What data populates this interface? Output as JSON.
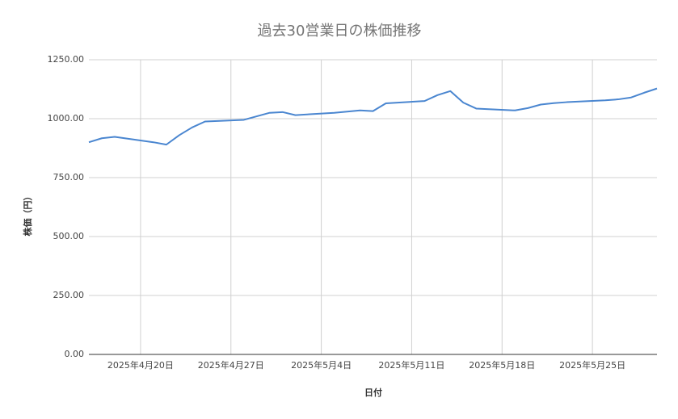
{
  "chart_data": {
    "type": "line",
    "title": "過去30営業日の株価推移",
    "x_label": "日付",
    "y_label": "株価（円）",
    "x": [
      "2025-04-16",
      "2025-04-17",
      "2025-04-18",
      "2025-04-21",
      "2025-04-22",
      "2025-04-23",
      "2025-04-24",
      "2025-04-25",
      "2025-04-28",
      "2025-04-29",
      "2025-04-30",
      "2025-05-01",
      "2025-05-02",
      "2025-05-05",
      "2025-05-06",
      "2025-05-07",
      "2025-05-08",
      "2025-05-09",
      "2025-05-12",
      "2025-05-13",
      "2025-05-14",
      "2025-05-15",
      "2025-05-16",
      "2025-05-19",
      "2025-05-20",
      "2025-05-21",
      "2025-05-22",
      "2025-05-23",
      "2025-05-26",
      "2025-05-27",
      "2025-05-28",
      "2025-05-29",
      "2025-05-30"
    ],
    "series": [
      {
        "color": "#4a86d0",
        "values": [
          900,
          917,
          923,
          900,
          890,
          930,
          963,
          988,
          995,
          1010,
          1025,
          1028,
          1015,
          1025,
          1030,
          1035,
          1032,
          1065,
          1075,
          1100,
          1117,
          1068,
          1043,
          1035,
          1045,
          1060,
          1066,
          1070,
          1078,
          1082,
          1090,
          1110,
          1128
        ]
      }
    ],
    "xlim": [
      "2025-04-16",
      "2025-05-30"
    ],
    "xticks": [
      {
        "value": "2025-04-20",
        "label": "2025年4月20日"
      },
      {
        "value": "2025-04-27",
        "label": "2025年4月27日"
      },
      {
        "value": "2025-05-04",
        "label": "2025年5月4日"
      },
      {
        "value": "2025-05-11",
        "label": "2025年5月11日"
      },
      {
        "value": "2025-05-18",
        "label": "2025年5月18日"
      },
      {
        "value": "2025-05-25",
        "label": "2025年5月25日"
      }
    ],
    "ylim": [
      0,
      1250
    ],
    "yticks": [
      {
        "value": 0,
        "label": "0.00"
      },
      {
        "value": 250,
        "label": "250.00"
      },
      {
        "value": 500,
        "label": "500.00"
      },
      {
        "value": 750,
        "label": "750.00"
      },
      {
        "value": 1000,
        "label": "1000.00"
      },
      {
        "value": 1250,
        "label": "1250.00"
      }
    ],
    "grid": true
  }
}
